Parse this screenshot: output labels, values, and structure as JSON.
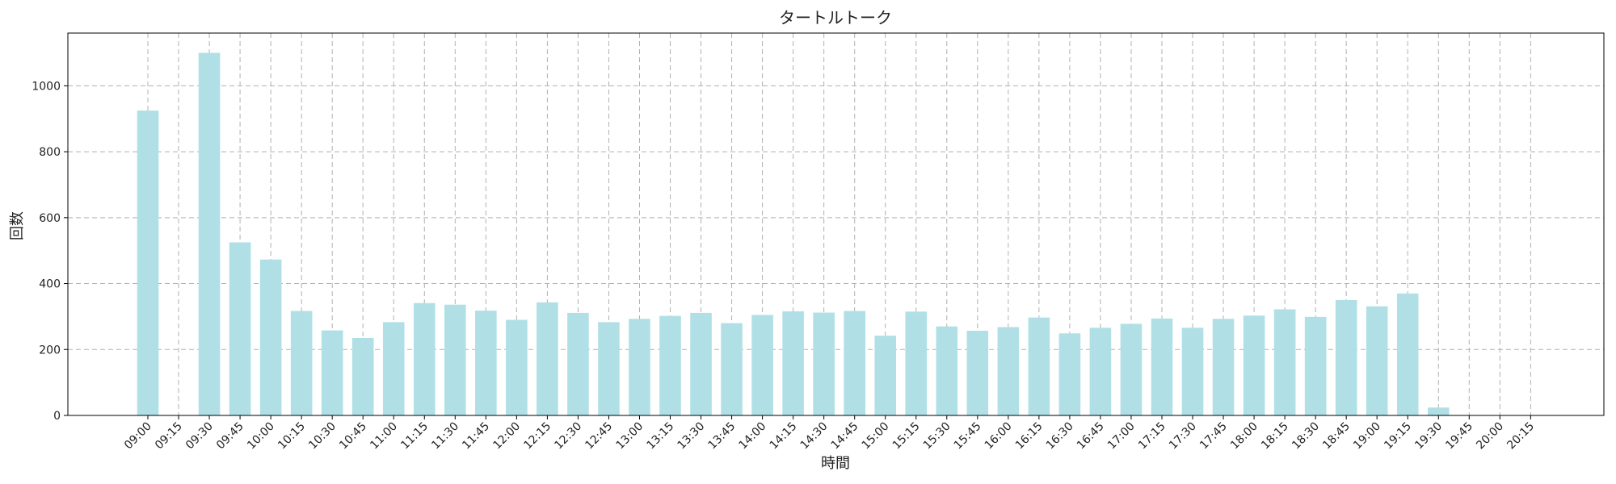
{
  "chart_data": {
    "type": "bar",
    "title": "タートルトーク",
    "xlabel": "時間",
    "ylabel": "回数",
    "ylim": [
      0,
      1160
    ],
    "yticks": [
      0,
      200,
      400,
      600,
      800,
      1000
    ],
    "grid": true,
    "bar_color": "#b0e0e6",
    "grid_color": "#b0b0b0",
    "categories": [
      "09:00",
      "09:15",
      "09:30",
      "09:45",
      "10:00",
      "10:15",
      "10:30",
      "10:45",
      "11:00",
      "11:15",
      "11:30",
      "11:45",
      "12:00",
      "12:15",
      "12:30",
      "12:45",
      "13:00",
      "13:15",
      "13:30",
      "13:45",
      "14:00",
      "14:15",
      "14:30",
      "14:45",
      "15:00",
      "15:15",
      "15:30",
      "15:45",
      "16:00",
      "16:15",
      "16:30",
      "16:45",
      "17:00",
      "17:15",
      "17:30",
      "17:45",
      "18:00",
      "18:15",
      "18:30",
      "18:45",
      "19:00",
      "19:15",
      "19:30",
      "19:45",
      "20:00",
      "20:15"
    ],
    "values": [
      925,
      0,
      1100,
      525,
      473,
      317,
      258,
      235,
      283,
      341,
      336,
      318,
      290,
      343,
      311,
      283,
      293,
      302,
      311,
      280,
      305,
      316,
      312,
      317,
      242,
      315,
      270,
      257,
      268,
      297,
      249,
      266,
      278,
      294,
      266,
      293,
      303,
      322,
      299,
      350,
      331,
      370,
      24,
      0,
      0,
      0
    ]
  }
}
